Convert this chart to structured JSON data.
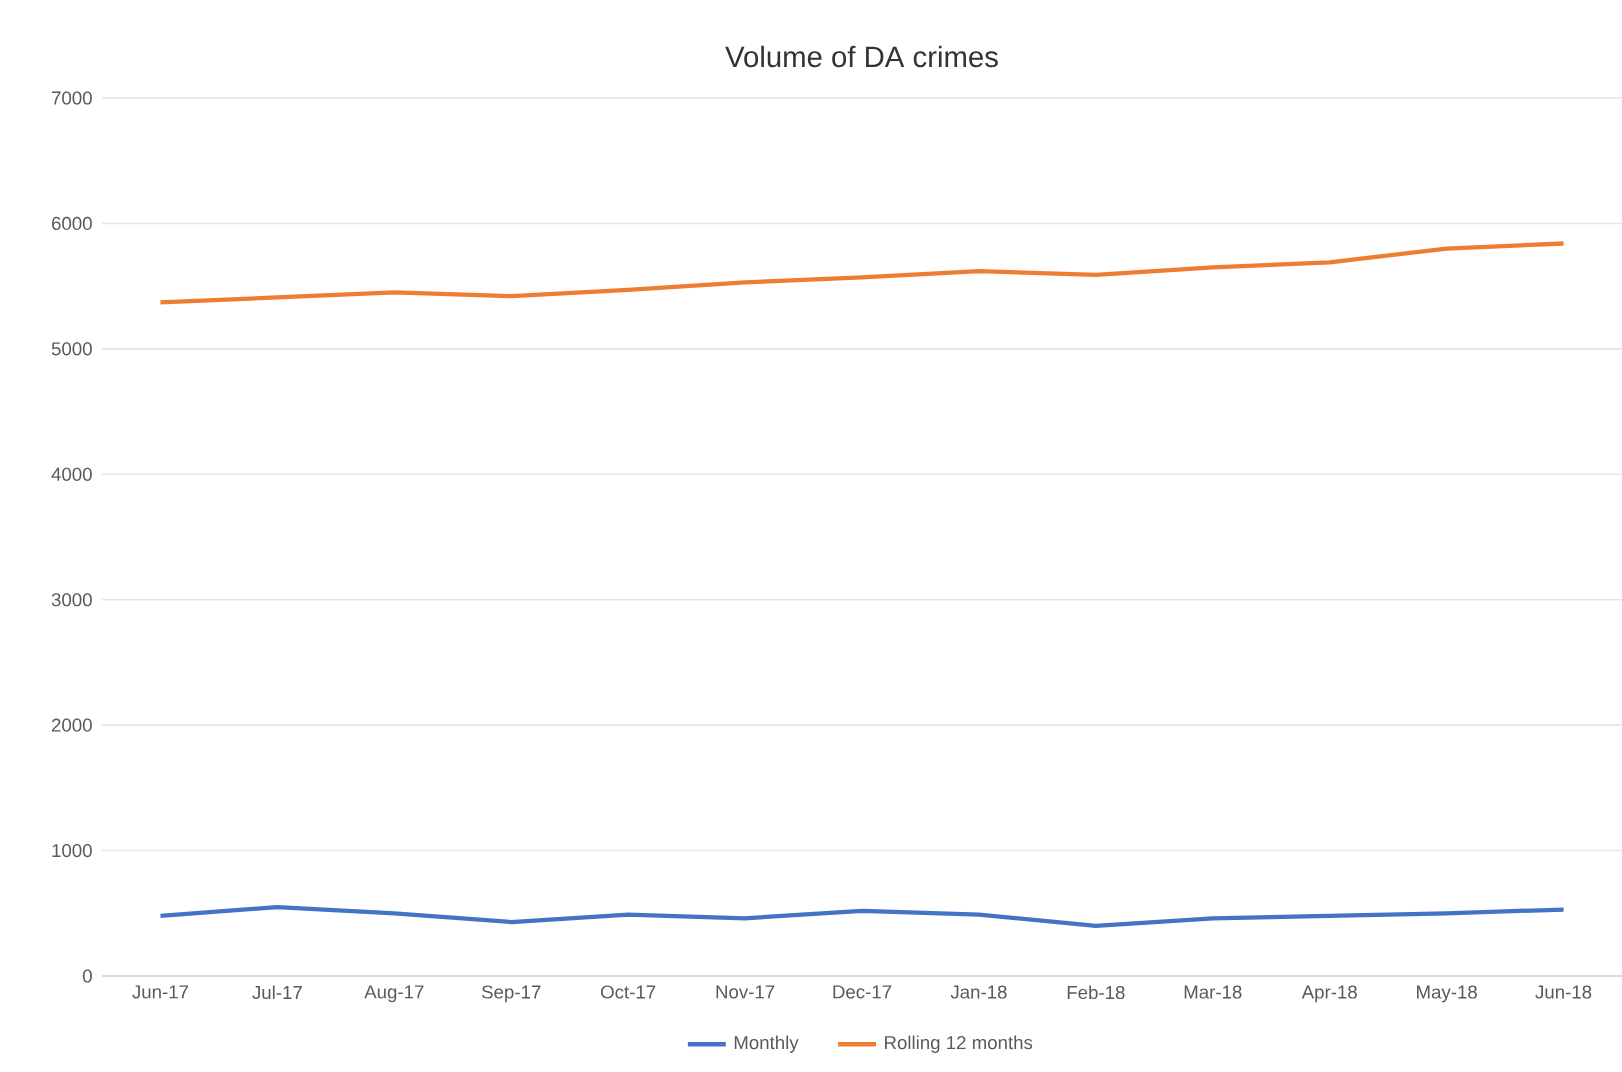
{
  "chart_data": {
    "type": "line",
    "title": "Volume of DA crimes",
    "categories": [
      "Jun-17",
      "Jul-17",
      "Aug-17",
      "Sep-17",
      "Oct-17",
      "Nov-17",
      "Dec-17",
      "Jan-18",
      "Feb-18",
      "Mar-18",
      "Apr-18",
      "May-18",
      "Jun-18"
    ],
    "series": [
      {
        "name": "Monthly",
        "color": "#4472c4",
        "values": [
          480,
          550,
          500,
          430,
          490,
          460,
          520,
          490,
          400,
          460,
          480,
          500,
          530
        ]
      },
      {
        "name": "Rolling 12 months",
        "color": "#ed7d31",
        "values": [
          5370,
          5410,
          5450,
          5420,
          5470,
          5530,
          5570,
          5620,
          5590,
          5650,
          5690,
          5800,
          5840
        ]
      }
    ],
    "ylim": [
      0,
      7000
    ],
    "yticks": [
      0,
      1000,
      2000,
      3000,
      4000,
      5000,
      6000,
      7000
    ],
    "grid": "y",
    "legend": "bottom",
    "marker": "none",
    "line_style": "solid"
  }
}
